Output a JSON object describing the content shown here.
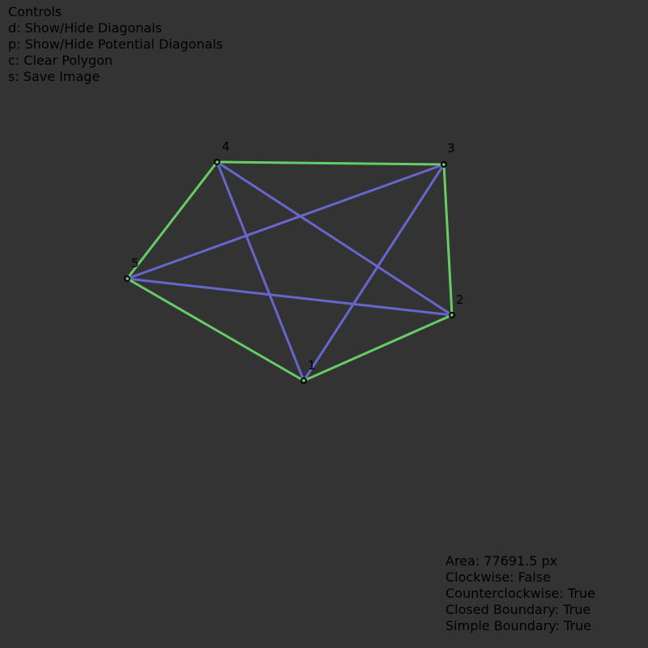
{
  "controls": {
    "title": "Controls",
    "items": [
      "d: Show/Hide Diagonals",
      "p: Show/Hide Potential Diagonals",
      "c: Clear Polygon",
      "s: Save Image"
    ]
  },
  "stats": {
    "area": "Area: 77691.5 px",
    "clockwise": "Clockwise: False",
    "counterclockwise": "Counterclockwise: True",
    "closed": "Closed Boundary: True",
    "simple": "Simple Boundary: True"
  },
  "polygon": {
    "vertex_labels": [
      "1",
      "2",
      "3",
      "4",
      "5"
    ],
    "edge_color": "#66cc66",
    "diagonal_color": "#6666cc",
    "vertex_color": "#000000"
  }
}
